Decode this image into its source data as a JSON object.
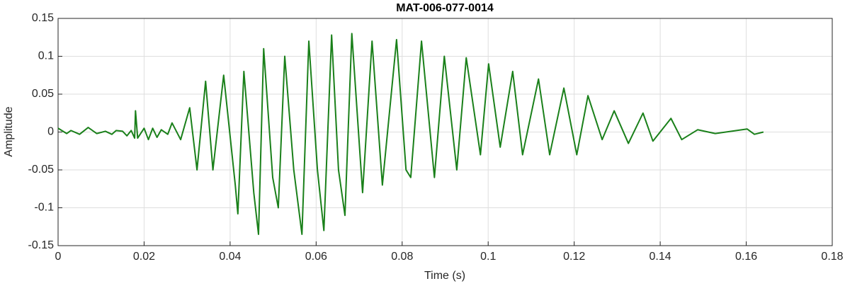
{
  "chart_data": {
    "type": "line",
    "title": "MAT-006-077-0014",
    "xlabel": "Time (s)",
    "ylabel": "Amplitude",
    "color": "#1a801a",
    "grid": true,
    "xlim": [
      0,
      0.18
    ],
    "xticks": [
      0,
      0.02,
      0.04,
      0.06,
      0.08,
      0.1,
      0.12,
      0.14,
      0.16,
      0.18
    ],
    "ylim": [
      -0.15,
      0.15
    ],
    "yticks": [
      -0.15,
      -0.1,
      -0.05,
      0,
      0.05,
      0.1,
      0.15
    ],
    "x": [
      0,
      0.002,
      0.003,
      0.005,
      0.007,
      0.009,
      0.011,
      0.0125,
      0.0135,
      0.015,
      0.016,
      0.017,
      0.0178,
      0.018,
      0.0185,
      0.02,
      0.021,
      0.022,
      0.023,
      0.024,
      0.0255,
      0.0265,
      0.0285,
      0.0306,
      0.0323,
      0.0343,
      0.036,
      0.0385,
      0.0412,
      0.0418,
      0.0432,
      0.0455,
      0.0466,
      0.0478,
      0.0499,
      0.0512,
      0.0527,
      0.0548,
      0.0567,
      0.0583,
      0.0603,
      0.0618,
      0.0636,
      0.0652,
      0.0667,
      0.0683,
      0.0708,
      0.073,
      0.0754,
      0.0787,
      0.0809,
      0.082,
      0.0845,
      0.0875,
      0.0898,
      0.0927,
      0.0949,
      0.0982,
      0.1001,
      0.1028,
      0.1057,
      0.108,
      0.1117,
      0.1143,
      0.1176,
      0.1206,
      0.1232,
      0.1265,
      0.1293,
      0.1326,
      0.136,
      0.1383,
      0.1425,
      0.145,
      0.1487,
      0.1528,
      0.1602,
      0.1619,
      0.164
    ],
    "values": [
      0.005,
      -0.002,
      0.002,
      -0.003,
      0.006,
      -0.002,
      0.001,
      -0.003,
      0.002,
      0.001,
      -0.005,
      0.002,
      -0.008,
      0.028,
      -0.008,
      0.005,
      -0.01,
      0.005,
      -0.007,
      0.003,
      -0.003,
      0.012,
      -0.01,
      0.032,
      -0.05,
      0.067,
      -0.05,
      0.075,
      -0.07,
      -0.108,
      0.08,
      -0.08,
      -0.135,
      0.11,
      -0.06,
      -0.1,
      0.1,
      -0.05,
      -0.135,
      0.12,
      -0.05,
      -0.13,
      0.128,
      -0.05,
      -0.11,
      0.13,
      -0.08,
      0.12,
      -0.07,
      0.122,
      -0.05,
      -0.06,
      0.12,
      -0.06,
      0.1,
      -0.05,
      0.098,
      -0.03,
      0.09,
      -0.02,
      0.08,
      -0.03,
      0.07,
      -0.03,
      0.058,
      -0.03,
      0.048,
      -0.01,
      0.028,
      -0.015,
      0.025,
      -0.012,
      0.018,
      -0.01,
      0.003,
      -0.002,
      0.004,
      -0.003,
      0
    ]
  }
}
